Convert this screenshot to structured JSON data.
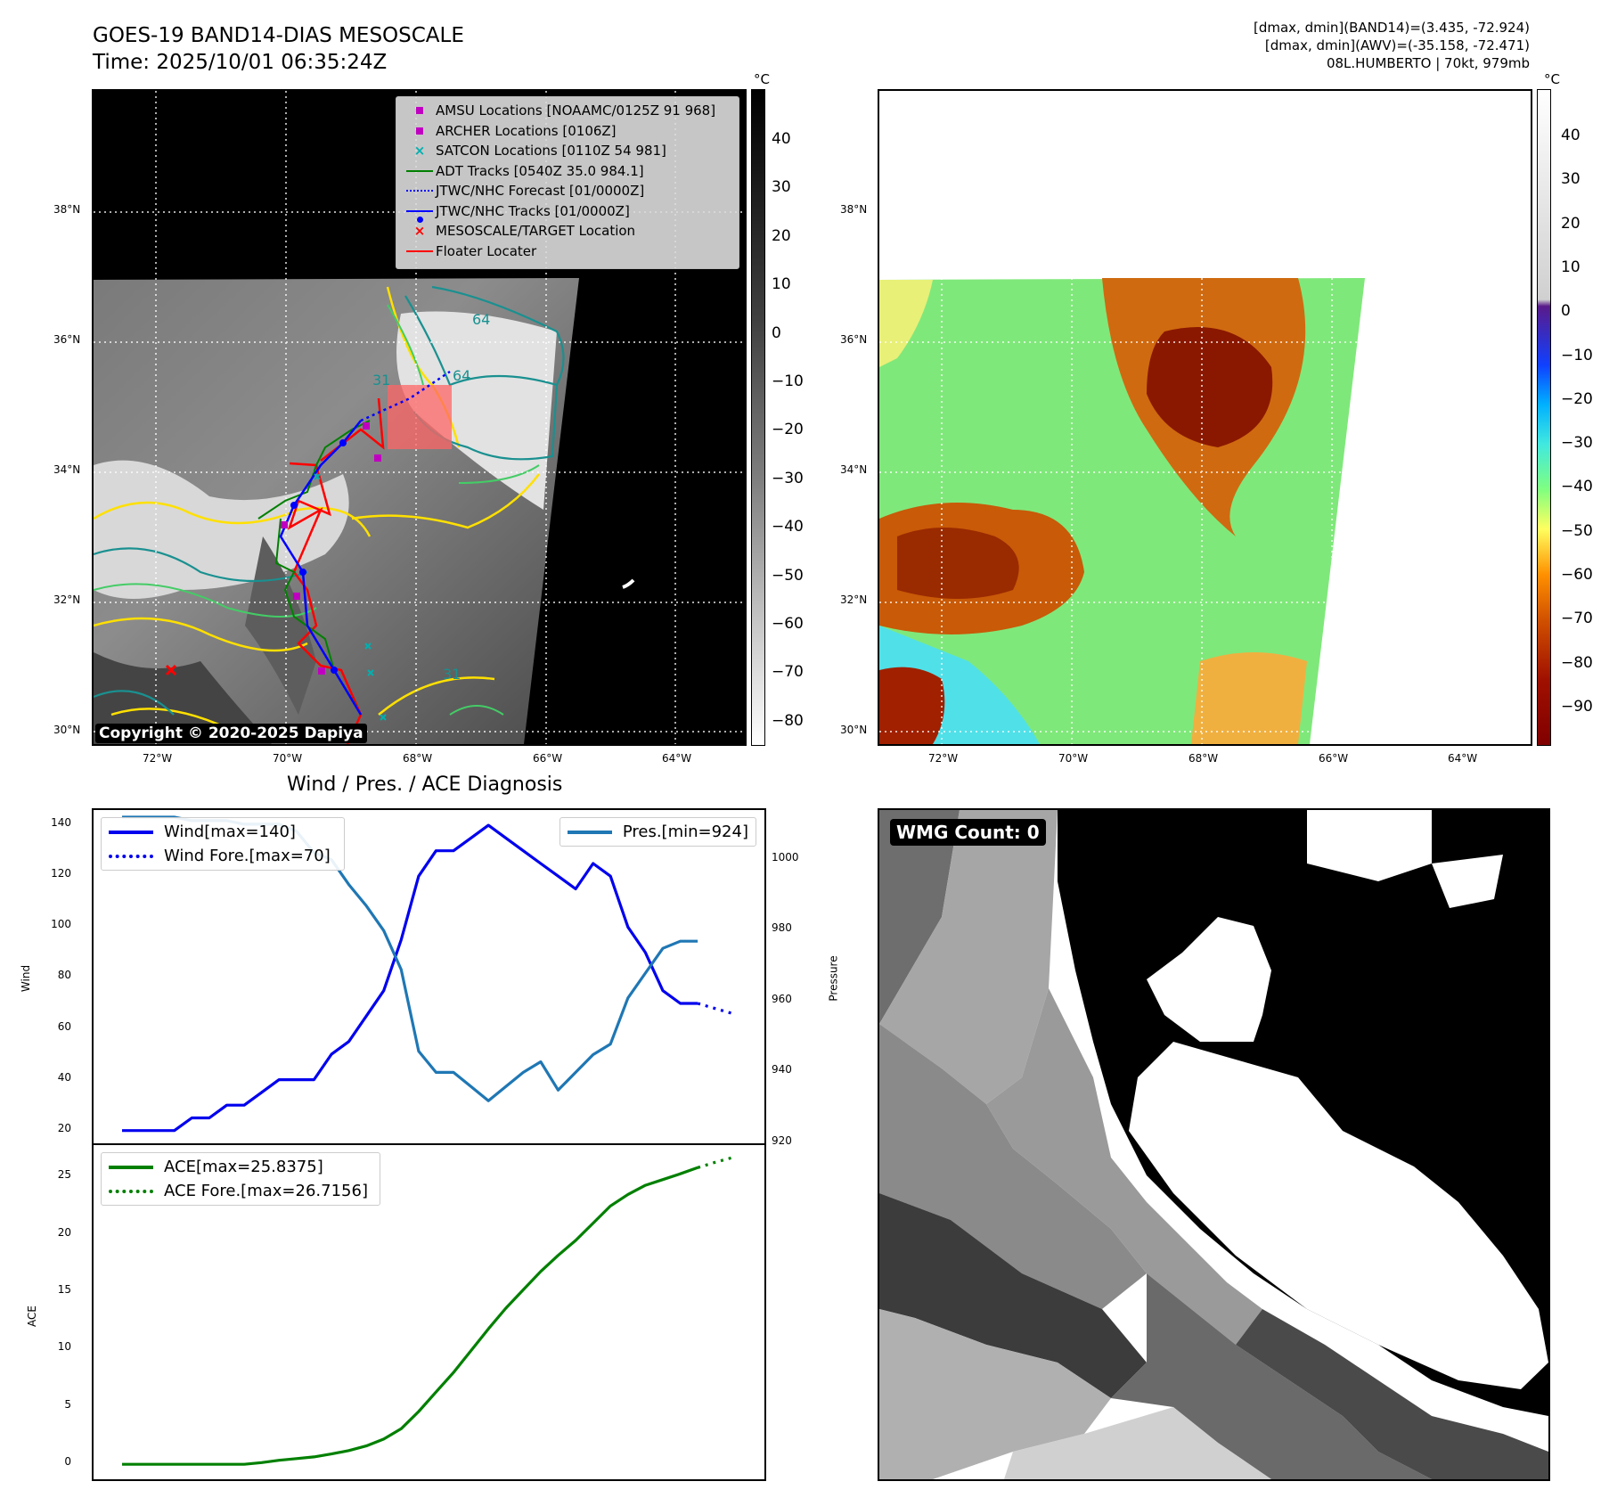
{
  "header": {
    "title_line1": "GOES-19 BAND14-DIAS MESOSCALE",
    "title_line2": "Time: 2025/10/01 06:35:24Z",
    "info_line1": "[dmax, dmin](BAND14)=(3.435, -72.924)",
    "info_line2": "[dmax, dmin](AWV)=(-35.158, -72.471)",
    "info_line3": "08L.HUMBERTO | 70kt, 979mb"
  },
  "map": {
    "lat_labels": [
      "38°N",
      "36°N",
      "34°N",
      "32°N",
      "30°N"
    ],
    "lon_labels": [
      "72°W",
      "70°W",
      "68°W",
      "66°W",
      "64°W"
    ],
    "copyright": "Copyright © 2020-2025 Dapiya",
    "contour_labels": [
      "64",
      "64",
      "31",
      "31"
    ],
    "legend": [
      {
        "label": "AMSU Locations [NOAAMC/0125Z 91 968]",
        "color": "#c000c0",
        "symbol": "square"
      },
      {
        "label": "ARCHER Locations [0106Z]",
        "color": "#c000c0",
        "symbol": "square"
      },
      {
        "label": "SATCON Locations [0110Z 54 981]",
        "color": "#00b0b0",
        "symbol": "x"
      },
      {
        "label": "ADT Tracks [0540Z 35.0 984.1]",
        "color": "#008000",
        "symbol": "line"
      },
      {
        "label": "JTWC/NHC Forecast [01/0000Z]",
        "color": "#0000ff",
        "symbol": "dotted"
      },
      {
        "label": "JTWC/NHC Tracks [01/0000Z]",
        "color": "#0000ff",
        "symbol": "dotline"
      },
      {
        "label": "MESOSCALE/TARGET Location",
        "color": "#ff0000",
        "symbol": "x"
      },
      {
        "label": "Floater Locater",
        "color": "#ff0000",
        "symbol": "line"
      }
    ]
  },
  "colorbar_ir": {
    "unit": "°C",
    "ticks": [
      "40",
      "30",
      "20",
      "10",
      "0",
      "−10",
      "−20",
      "−30",
      "−40",
      "−50",
      "−60",
      "−70",
      "−80"
    ]
  },
  "colorbar_wv": {
    "unit": "°C",
    "ticks": [
      "40",
      "30",
      "20",
      "10",
      "0",
      "−10",
      "−20",
      "−30",
      "−40",
      "−50",
      "−60",
      "−70",
      "−80",
      "−90"
    ]
  },
  "diagnosis": {
    "title": "Wind / Pres. / ACE Diagnosis",
    "wmg_label": "WMG Count: 0"
  },
  "chart_data": [
    {
      "type": "line",
      "ylabel": "Wind",
      "y2label": "Pressure",
      "ylim": [
        15,
        146
      ],
      "y2lim": [
        920,
        1014
      ],
      "yticks": [
        20,
        40,
        60,
        80,
        100,
        120,
        140
      ],
      "y2ticks": [
        920,
        940,
        960,
        980,
        1000
      ],
      "series": [
        {
          "name": "Wind[max=140]",
          "color": "#0000ee",
          "values": [
            20,
            20,
            20,
            20,
            25,
            25,
            30,
            30,
            35,
            40,
            40,
            40,
            50,
            55,
            65,
            75,
            95,
            120,
            130,
            130,
            135,
            140,
            135,
            130,
            125,
            120,
            115,
            125,
            120,
            100,
            90,
            75,
            70,
            70
          ]
        },
        {
          "name": "Wind Fore.[max=70]",
          "color": "#0000ee",
          "dashed": true,
          "values": [
            70,
            68,
            66
          ]
        },
        {
          "name": "Pres.[min=924]",
          "color": "#1f77b4",
          "values": [
            1012,
            1012,
            1012,
            1012,
            1011,
            1011,
            1011,
            1010,
            1010,
            1010,
            1008,
            1002,
            1000,
            993,
            987,
            980,
            969,
            946,
            940,
            940,
            936,
            932,
            936,
            940,
            943,
            935,
            940,
            945,
            948,
            961,
            968,
            975,
            977,
            977
          ]
        }
      ]
    },
    {
      "type": "line",
      "ylabel": "ACE",
      "ylim": [
        -1.3,
        27.8
      ],
      "yticks": [
        0,
        5,
        10,
        15,
        20,
        25
      ],
      "series": [
        {
          "name": "ACE[max=25.8375]",
          "color": "#008000",
          "values": [
            0,
            0,
            0,
            0,
            0,
            0,
            0,
            0,
            0.15,
            0.35,
            0.5,
            0.65,
            0.9,
            1.2,
            1.6,
            2.2,
            3.1,
            4.6,
            6.3,
            8.0,
            9.9,
            11.8,
            13.6,
            15.2,
            16.8,
            18.2,
            19.5,
            21.0,
            22.5,
            23.5,
            24.3,
            24.8,
            25.3,
            25.8375
          ]
        },
        {
          "name": "ACE Fore.[max=26.7156]",
          "color": "#008000",
          "dashed": true,
          "values": [
            25.8375,
            26.3,
            26.7156
          ]
        }
      ]
    }
  ]
}
